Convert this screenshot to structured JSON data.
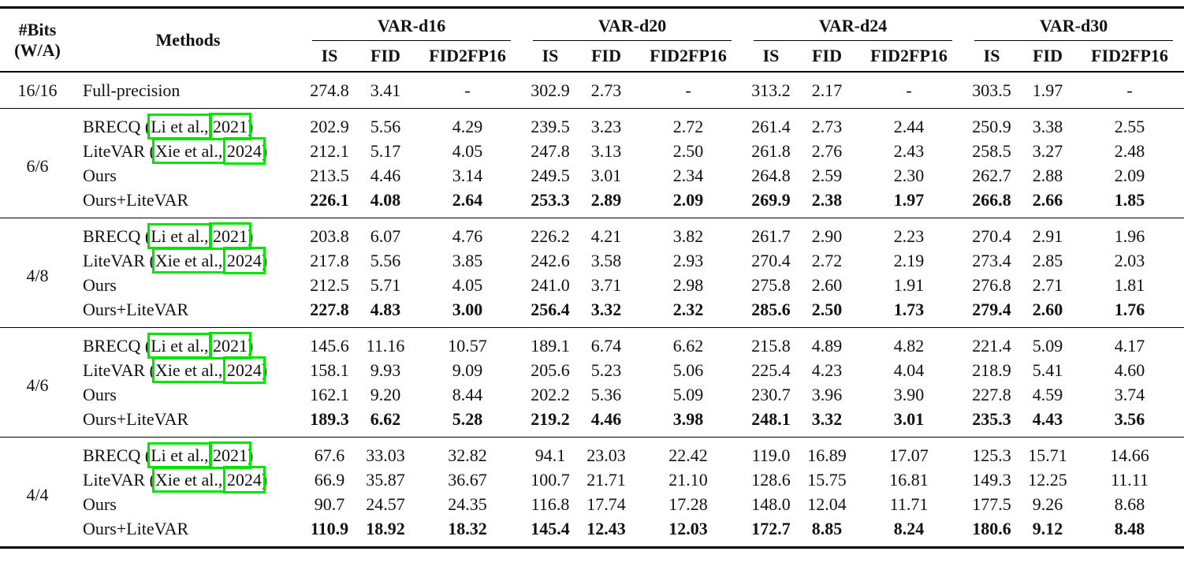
{
  "colors": {
    "link_box": "#00e400",
    "text": "#111111",
    "rule": "#000000",
    "background": "#ffffff"
  },
  "table": {
    "header": {
      "bits_line1": "#Bits",
      "bits_line2": "(W/A)",
      "methods": "Methods",
      "groups": [
        "VAR-d16",
        "VAR-d20",
        "VAR-d24",
        "VAR-d30"
      ],
      "metrics": [
        "IS",
        "FID",
        "FID2FP16"
      ]
    },
    "sections": [
      {
        "bits": "16/16",
        "rows": [
          {
            "method": {
              "text": "Full-precision"
            },
            "bold": false,
            "values": [
              "274.8",
              "3.41",
              "-",
              "302.9",
              "2.73",
              "-",
              "313.2",
              "2.17",
              "-",
              "303.5",
              "1.97",
              "-"
            ]
          }
        ]
      },
      {
        "bits": "6/6",
        "rows": [
          {
            "method": {
              "prefix": "BRECQ (",
              "cite_author": "Li et al.,",
              "cite_year": "2021",
              "suffix": ")"
            },
            "bold": false,
            "values": [
              "202.9",
              "5.56",
              "4.29",
              "239.5",
              "3.23",
              "2.72",
              "261.4",
              "2.73",
              "2.44",
              "250.9",
              "3.38",
              "2.55"
            ]
          },
          {
            "method": {
              "prefix": "LiteVAR (",
              "cite_author": "Xie et al.,",
              "cite_year": "2024",
              "suffix": ")"
            },
            "bold": false,
            "values": [
              "212.1",
              "5.17",
              "4.05",
              "247.8",
              "3.13",
              "2.50",
              "261.8",
              "2.76",
              "2.43",
              "258.5",
              "3.27",
              "2.48"
            ]
          },
          {
            "method": {
              "text": "Ours"
            },
            "bold": false,
            "values": [
              "213.5",
              "4.46",
              "3.14",
              "249.5",
              "3.01",
              "2.34",
              "264.8",
              "2.59",
              "2.30",
              "262.7",
              "2.88",
              "2.09"
            ]
          },
          {
            "method": {
              "text": "Ours+LiteVAR"
            },
            "bold": true,
            "values": [
              "226.1",
              "4.08",
              "2.64",
              "253.3",
              "2.89",
              "2.09",
              "269.9",
              "2.38",
              "1.97",
              "266.8",
              "2.66",
              "1.85"
            ]
          }
        ]
      },
      {
        "bits": "4/8",
        "rows": [
          {
            "method": {
              "prefix": "BRECQ (",
              "cite_author": "Li et al.,",
              "cite_year": "2021",
              "suffix": ")"
            },
            "bold": false,
            "values": [
              "203.8",
              "6.07",
              "4.76",
              "226.2",
              "4.21",
              "3.82",
              "261.7",
              "2.90",
              "2.23",
              "270.4",
              "2.91",
              "1.96"
            ]
          },
          {
            "method": {
              "prefix": "LiteVAR (",
              "cite_author": "Xie et al.,",
              "cite_year": "2024",
              "suffix": ")"
            },
            "bold": false,
            "values": [
              "217.8",
              "5.56",
              "3.85",
              "242.6",
              "3.58",
              "2.93",
              "270.4",
              "2.72",
              "2.19",
              "273.4",
              "2.85",
              "2.03"
            ]
          },
          {
            "method": {
              "text": "Ours"
            },
            "bold": false,
            "values": [
              "212.5",
              "5.71",
              "4.05",
              "241.0",
              "3.71",
              "2.98",
              "275.8",
              "2.60",
              "1.91",
              "276.8",
              "2.71",
              "1.81"
            ]
          },
          {
            "method": {
              "text": "Ours+LiteVAR"
            },
            "bold": true,
            "values": [
              "227.8",
              "4.83",
              "3.00",
              "256.4",
              "3.32",
              "2.32",
              "285.6",
              "2.50",
              "1.73",
              "279.4",
              "2.60",
              "1.76"
            ]
          }
        ]
      },
      {
        "bits": "4/6",
        "rows": [
          {
            "method": {
              "prefix": "BRECQ (",
              "cite_author": "Li et al.,",
              "cite_year": "2021",
              "suffix": ")"
            },
            "bold": false,
            "values": [
              "145.6",
              "11.16",
              "10.57",
              "189.1",
              "6.74",
              "6.62",
              "215.8",
              "4.89",
              "4.82",
              "221.4",
              "5.09",
              "4.17"
            ]
          },
          {
            "method": {
              "prefix": "LiteVAR (",
              "cite_author": "Xie et al.,",
              "cite_year": "2024",
              "suffix": ")"
            },
            "bold": false,
            "values": [
              "158.1",
              "9.93",
              "9.09",
              "205.6",
              "5.23",
              "5.06",
              "225.4",
              "4.23",
              "4.04",
              "218.9",
              "5.41",
              "4.60"
            ]
          },
          {
            "method": {
              "text": "Ours"
            },
            "bold": false,
            "values": [
              "162.1",
              "9.20",
              "8.44",
              "202.2",
              "5.36",
              "5.09",
              "230.7",
              "3.96",
              "3.90",
              "227.8",
              "4.59",
              "3.74"
            ]
          },
          {
            "method": {
              "text": "Ours+LiteVAR"
            },
            "bold": true,
            "values": [
              "189.3",
              "6.62",
              "5.28",
              "219.2",
              "4.46",
              "3.98",
              "248.1",
              "3.32",
              "3.01",
              "235.3",
              "4.43",
              "3.56"
            ]
          }
        ]
      },
      {
        "bits": "4/4",
        "rows": [
          {
            "method": {
              "prefix": "BRECQ (",
              "cite_author": "Li et al.,",
              "cite_year": "2021",
              "suffix": ")"
            },
            "bold": false,
            "values": [
              "67.6",
              "33.03",
              "32.82",
              "94.1",
              "23.03",
              "22.42",
              "119.0",
              "16.89",
              "17.07",
              "125.3",
              "15.71",
              "14.66"
            ]
          },
          {
            "method": {
              "prefix": "LiteVAR (",
              "cite_author": "Xie et al.,",
              "cite_year": "2024",
              "suffix": ")"
            },
            "bold": false,
            "values": [
              "66.9",
              "35.87",
              "36.67",
              "100.7",
              "21.71",
              "21.10",
              "128.6",
              "15.75",
              "16.81",
              "149.3",
              "12.25",
              "11.11"
            ]
          },
          {
            "method": {
              "text": "Ours"
            },
            "bold": false,
            "values": [
              "90.7",
              "24.57",
              "24.35",
              "116.8",
              "17.74",
              "17.28",
              "148.0",
              "12.04",
              "11.71",
              "177.5",
              "9.26",
              "8.68"
            ]
          },
          {
            "method": {
              "text": "Ours+LiteVAR"
            },
            "bold": true,
            "values": [
              "110.9",
              "18.92",
              "18.32",
              "145.4",
              "12.43",
              "12.03",
              "172.7",
              "8.85",
              "8.24",
              "180.6",
              "9.12",
              "8.48"
            ]
          }
        ]
      }
    ]
  }
}
